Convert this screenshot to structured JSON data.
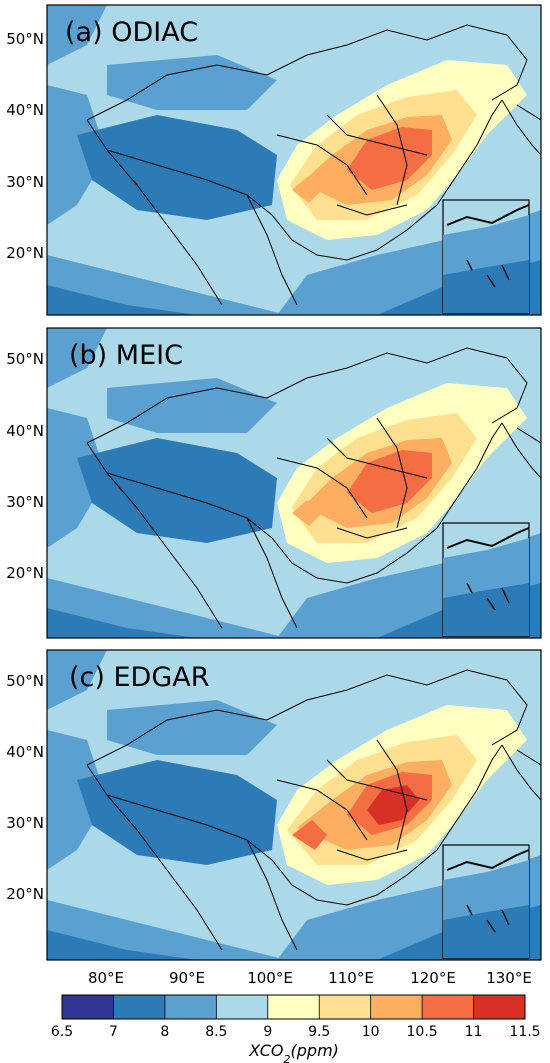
{
  "panels": [
    {
      "label": "(a) ODIAC",
      "intensity": 0.72
    },
    {
      "label": "(b) MEIC",
      "intensity": 0.55
    },
    {
      "label": "(c) EDGAR",
      "intensity": 1.0
    }
  ],
  "latitude_ticks": [
    "50°N",
    "40°N",
    "30°N",
    "20°N"
  ],
  "longitude_ticks": [
    "80°E",
    "90°E",
    "100°E",
    "110°E",
    "120°E",
    "130°E"
  ],
  "colorbar": {
    "ticks": [
      "6.5",
      "7",
      "8",
      "8.5",
      "9",
      "9.5",
      "10",
      "10.5",
      "11",
      "11.5"
    ],
    "colors": [
      "#313695",
      "#2c7bb6",
      "#5aa1d2",
      "#abd9e9",
      "#ffffbf",
      "#fee090",
      "#fdae61",
      "#f46d43",
      "#d73027"
    ],
    "label_main": "XCO",
    "label_sub": "2",
    "label_rest": "(ppm)"
  },
  "colors": {
    "sea_deep": "#2c7bb6",
    "sea": "#5aa1d2",
    "land_light": "#abd9e9",
    "tibet": "#2c7bb6",
    "plateau": "#5aa1d2",
    "low": "#ffffbf",
    "mid": "#fee090",
    "high": "#fdae61",
    "higher": "#f46d43",
    "peak": "#d73027"
  }
}
